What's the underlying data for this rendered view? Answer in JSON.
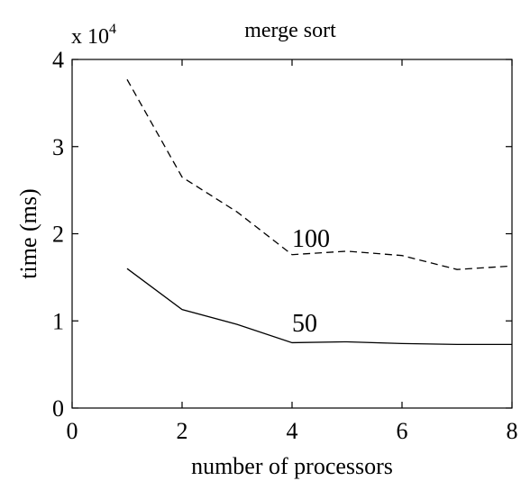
{
  "chart_data": {
    "type": "line",
    "title": "merge sort",
    "xlabel": "number of processors",
    "ylabel": "time (ms)",
    "y_multiplier_text": "x 10",
    "y_multiplier_exponent": "4",
    "xlim": [
      0,
      8
    ],
    "ylim": [
      0,
      40000
    ],
    "x_ticks": [
      0,
      2,
      4,
      6,
      8
    ],
    "x_tick_labels": [
      "0",
      "2",
      "4",
      "6",
      "8"
    ],
    "y_ticks": [
      0,
      10000,
      20000,
      30000,
      40000
    ],
    "y_tick_labels": [
      "0",
      "1",
      "2",
      "3",
      "4"
    ],
    "grid": false,
    "series": [
      {
        "name": "100",
        "style": "dashed",
        "color": "#000000",
        "label_at": [
          4,
          18500
        ],
        "x": [
          1,
          2,
          3,
          4,
          5,
          6,
          7,
          8
        ],
        "y": [
          37700,
          26500,
          22500,
          17600,
          18000,
          17500,
          15900,
          16300
        ]
      },
      {
        "name": "50",
        "style": "solid",
        "color": "#000000",
        "label_at": [
          4,
          8800
        ],
        "x": [
          1,
          2,
          3,
          4,
          5,
          6,
          7,
          8
        ],
        "y": [
          16000,
          11300,
          9600,
          7500,
          7600,
          7400,
          7300,
          7300
        ]
      }
    ]
  }
}
